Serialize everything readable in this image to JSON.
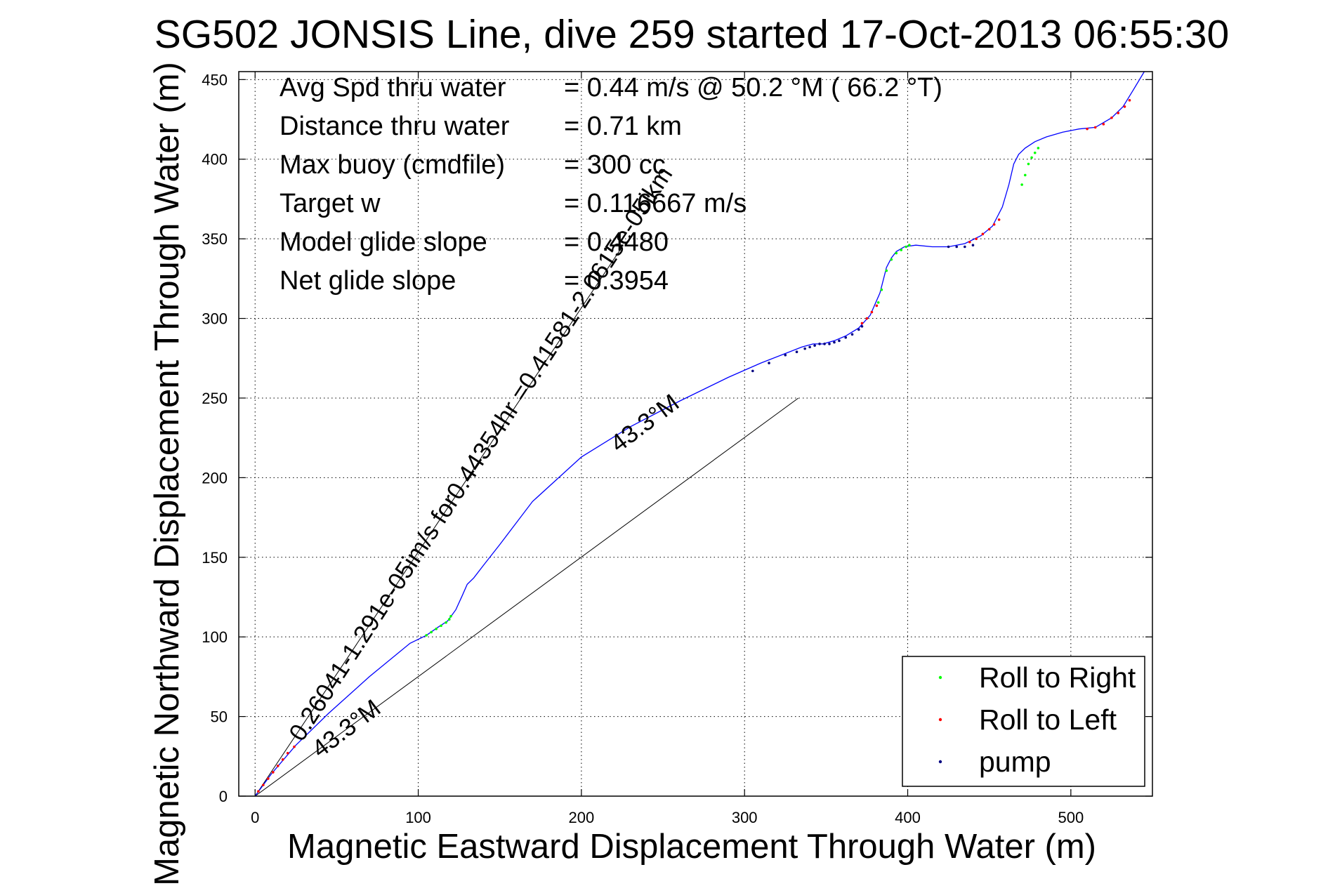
{
  "chart_data": {
    "type": "line",
    "title": "SG502 JONSIS Line, dive 259 started 17-Oct-2013 06:55:30",
    "xlabel": "Magnetic Eastward Displacement Through Water (m)",
    "ylabel": "Magnetic Northward Displacement Through Water (m)",
    "xlim": [
      -10,
      550
    ],
    "ylim": [
      0,
      455
    ],
    "xticks": [
      0,
      100,
      200,
      300,
      400,
      500
    ],
    "yticks": [
      0,
      50,
      100,
      150,
      200,
      250,
      300,
      350,
      400,
      450
    ],
    "grid": true,
    "stats": [
      {
        "label": "Avg Spd thru water",
        "value": "=  0.44 m/s @  50.2 °M ( 66.2 °T)"
      },
      {
        "label": "Distance thru water",
        "value": "=  0.71 km"
      },
      {
        "label": "Max buoy (cmdfile)",
        "value": "= 300 cc"
      },
      {
        "label": "Target w",
        "value": "= 0.116667 m/s"
      },
      {
        "label": "Model glide slope",
        "value": "= 0.4480"
      },
      {
        "label": "Net glide slope",
        "value": "= 0.3954"
      }
    ],
    "annotations": {
      "current": "0.26041-1.291e-05im/s for0.44354hr =0.41581-2.0615e-05ikm",
      "heading_a": "43.3°M",
      "heading_b": "43.3°M"
    },
    "reference_lines": [
      {
        "x": [
          0,
          225
        ],
        "y": [
          0,
          345
        ]
      },
      {
        "x": [
          0,
          333
        ],
        "y": [
          0,
          250
        ]
      }
    ],
    "track": {
      "name": "track",
      "color": "#0000ff",
      "x": [
        0,
        10,
        25,
        45,
        70,
        95,
        105,
        112,
        118,
        123,
        127,
        130,
        134,
        140,
        150,
        170,
        200,
        230,
        260,
        290,
        310,
        325,
        335,
        342,
        348,
        355,
        362,
        370,
        377,
        383,
        387,
        390,
        393,
        398,
        405,
        415,
        425,
        435,
        445,
        452,
        458,
        462,
        465,
        468,
        472,
        478,
        485,
        495,
        505,
        515,
        525,
        532,
        538,
        545
      ],
      "y": [
        0,
        14,
        32,
        52,
        75,
        96,
        101,
        106,
        110,
        117,
        126,
        133,
        137,
        145,
        158,
        185,
        213,
        232,
        248,
        263,
        272,
        278,
        282,
        284,
        284,
        286,
        289,
        294,
        302,
        316,
        332,
        338,
        342,
        345,
        346,
        345,
        345,
        347,
        352,
        358,
        370,
        384,
        397,
        403,
        407,
        411,
        414,
        417,
        419,
        420,
        426,
        433,
        443,
        455
      ]
    },
    "series": [
      {
        "name": "Roll to Right",
        "color": "#00ff00",
        "x": [
          105,
          108,
          111,
          114,
          117,
          119,
          120,
          382,
          384,
          387,
          390,
          393,
          396,
          399,
          401,
          470,
          472,
          474,
          476,
          478,
          480
        ],
        "y": [
          101,
          103,
          105,
          107,
          109,
          111,
          113,
          310,
          318,
          330,
          337,
          341,
          343,
          345,
          346,
          384,
          390,
          397,
          401,
          404,
          407
        ]
      },
      {
        "name": "Roll to Left",
        "color": "#ff0000",
        "x": [
          2,
          5,
          8,
          11,
          14,
          17,
          20,
          24,
          372,
          375,
          378,
          381,
          438,
          442,
          446,
          450,
          453,
          456,
          510,
          515,
          520,
          525,
          529,
          533,
          536
        ],
        "y": [
          3,
          7,
          11,
          15,
          19,
          23,
          27,
          31,
          297,
          300,
          304,
          308,
          348,
          350,
          353,
          356,
          359,
          362,
          419,
          420,
          422,
          426,
          429,
          433,
          437
        ]
      },
      {
        "name": "pump",
        "color": "#000080",
        "x": [
          305,
          315,
          325,
          332,
          337,
          340,
          343,
          346,
          349,
          352,
          355,
          358,
          362,
          366,
          370,
          372,
          425,
          430,
          435,
          440
        ],
        "y": [
          267,
          272,
          277,
          279,
          281,
          282,
          283,
          284,
          284,
          284,
          285,
          286,
          288,
          290,
          293,
          295,
          345,
          345,
          345,
          346
        ]
      }
    ],
    "legend": {
      "position": "bottom-right",
      "entries": [
        "Roll to Right",
        "Roll to Left",
        "pump"
      ]
    }
  }
}
